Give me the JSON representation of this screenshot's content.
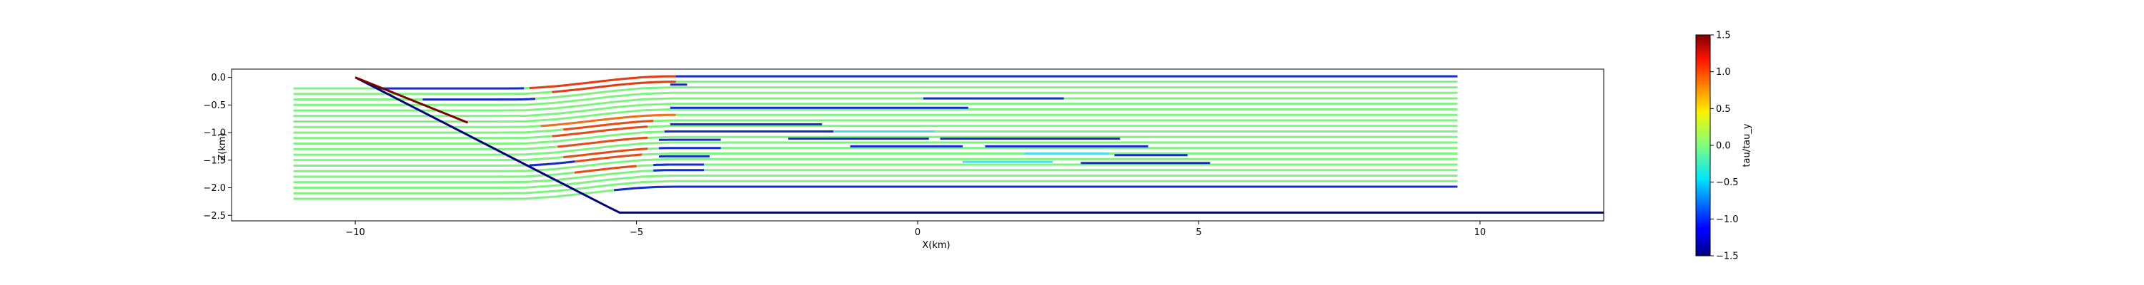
{
  "chart_data": {
    "type": "line",
    "title": "",
    "xlabel": "X(km)",
    "ylabel": "Z(km)",
    "xlim": [
      -12.2,
      12.2
    ],
    "ylim": [
      -2.6,
      0.15
    ],
    "x_ticks": [
      -10,
      -5,
      0,
      5,
      10
    ],
    "x_tick_labels": [
      "−10",
      "−5",
      "0",
      "5",
      "10"
    ],
    "y_ticks": [
      0.0,
      -0.5,
      -1.0,
      -1.5,
      -2.0,
      -2.5
    ],
    "y_tick_labels": [
      "0.0",
      "−0.5",
      "−1.0",
      "−1.5",
      "−2.0",
      "−2.5"
    ],
    "grid": false,
    "legend": "none",
    "boundary": {
      "color": "#00007f",
      "x": [
        -10.0,
        -5.5,
        -5.3,
        12.2
      ],
      "y": [
        0.0,
        -2.35,
        -2.45,
        -2.45
      ]
    },
    "fault_segment": {
      "color": "#7f0000",
      "x": [
        -10.0,
        -8.0
      ],
      "y": [
        0.0,
        -0.82
      ]
    },
    "horizons": {
      "depths": [
        -0.2,
        -0.3,
        -0.4,
        -0.5,
        -0.6,
        -0.7,
        -0.8,
        -0.9,
        -1.0,
        -1.1,
        -1.2,
        -1.3,
        -1.4,
        -1.5,
        -1.6,
        -1.7,
        -1.8,
        -1.9,
        -2.0,
        -2.1,
        -2.2
      ],
      "x_start": -11.1,
      "x_end": 9.6,
      "fold_x_start": -7.2,
      "fold_x_end": -4.4,
      "uplift_km": 0.22,
      "base_color": "#7ff27f"
    },
    "colored_segments": [
      {
        "x": [
          -6.9,
          -4.3
        ],
        "depth": -0.2,
        "color": "#e63a18"
      },
      {
        "x": [
          -6.5,
          -4.3
        ],
        "depth": -0.3,
        "color": "#e63a18"
      },
      {
        "x": [
          -6.7,
          -4.3
        ],
        "depth": -0.9,
        "color": "#f07020"
      },
      {
        "x": [
          -6.3,
          -4.7
        ],
        "depth": -1.0,
        "color": "#ea4a18"
      },
      {
        "x": [
          -6.5,
          -4.8
        ],
        "depth": -1.1,
        "color": "#ea4a18"
      },
      {
        "x": [
          -6.4,
          -4.8
        ],
        "depth": -1.3,
        "color": "#ea4a18"
      },
      {
        "x": [
          -6.3,
          -4.8
        ],
        "depth": -1.5,
        "color": "#ea4a18"
      },
      {
        "x": [
          -6.2,
          -4.9
        ],
        "depth": -1.6,
        "color": "#ea4a18"
      },
      {
        "x": [
          -6.1,
          -5.0
        ],
        "depth": -1.8,
        "color": "#ea4a18"
      },
      {
        "x": [
          -9.6,
          -7.0
        ],
        "depth": -0.2,
        "color": "#1a2ad0"
      },
      {
        "x": [
          -8.8,
          -6.8
        ],
        "depth": -0.4,
        "color": "#1a2ad0"
      },
      {
        "x": [
          -4.3,
          9.6
        ],
        "depth": -0.2,
        "color": "#1a2ad0"
      },
      {
        "x": [
          -4.4,
          -4.1
        ],
        "depth": -0.35,
        "color": "#1a2ad0"
      },
      {
        "x": [
          0.1,
          2.6
        ],
        "depth": -0.6,
        "color": "#1a2ad0"
      },
      {
        "x": [
          -4.4,
          0.9
        ],
        "depth": -0.77,
        "color": "#1a2ad0"
      },
      {
        "x": [
          -4.4,
          -1.7
        ],
        "depth": -1.07,
        "color": "#1a2ad0"
      },
      {
        "x": [
          -4.5,
          -1.3
        ],
        "depth": -1.2,
        "color": "#1a2ad0"
      },
      {
        "x": [
          -4.6,
          -3.5
        ],
        "depth": -1.35,
        "color": "#1a2ad0"
      },
      {
        "x": [
          -2.3,
          0.2
        ],
        "depth": -1.33,
        "color": "#1a2ad0"
      },
      {
        "x": [
          0.4,
          3.6
        ],
        "depth": -1.33,
        "color": "#1a2ad0"
      },
      {
        "x": [
          -4.6,
          -3.5
        ],
        "depth": -1.5,
        "color": "#1a2ad0"
      },
      {
        "x": [
          -1.2,
          0.8
        ],
        "depth": -1.47,
        "color": "#1a2ad0"
      },
      {
        "x": [
          1.2,
          4.1
        ],
        "depth": -1.47,
        "color": "#1a2ad0"
      },
      {
        "x": [
          -4.6,
          -3.7
        ],
        "depth": -1.65,
        "color": "#1a2ad0"
      },
      {
        "x": [
          3.5,
          4.8
        ],
        "depth": -1.63,
        "color": "#1a2ad0"
      },
      {
        "x": [
          -4.7,
          -3.8
        ],
        "depth": -1.8,
        "color": "#1a2ad0"
      },
      {
        "x": [
          2.9,
          5.2
        ],
        "depth": -1.77,
        "color": "#1a2ad0"
      },
      {
        "x": [
          -4.7,
          -3.8
        ],
        "depth": -1.9,
        "color": "#1a2ad0"
      },
      {
        "x": [
          -5.4,
          9.6
        ],
        "depth": -2.2,
        "color": "#1a2ad0"
      },
      {
        "x": [
          -6.9,
          -6.1
        ],
        "depth": -1.6,
        "color": "#1a2ad0"
      },
      {
        "x": [
          -1.5,
          0.3
        ],
        "depth": -1.2,
        "color": "#4fd8f0"
      },
      {
        "x": [
          1.9,
          3.4
        ],
        "depth": -1.6,
        "color": "#4fd8f0"
      },
      {
        "x": [
          0.8,
          2.4
        ],
        "depth": -1.75,
        "color": "#4fd8f0"
      }
    ]
  },
  "colorbar": {
    "label": "tau/tau_y",
    "min": -1.5,
    "max": 1.5,
    "ticks": [
      1.5,
      1.0,
      0.5,
      0.0,
      -0.5,
      -1.0,
      -1.5
    ],
    "tick_labels": [
      "1.5",
      "1.0",
      "0.5",
      "0.0",
      "−0.5",
      "−1.0",
      "−1.5"
    ],
    "colormap": "jet"
  }
}
